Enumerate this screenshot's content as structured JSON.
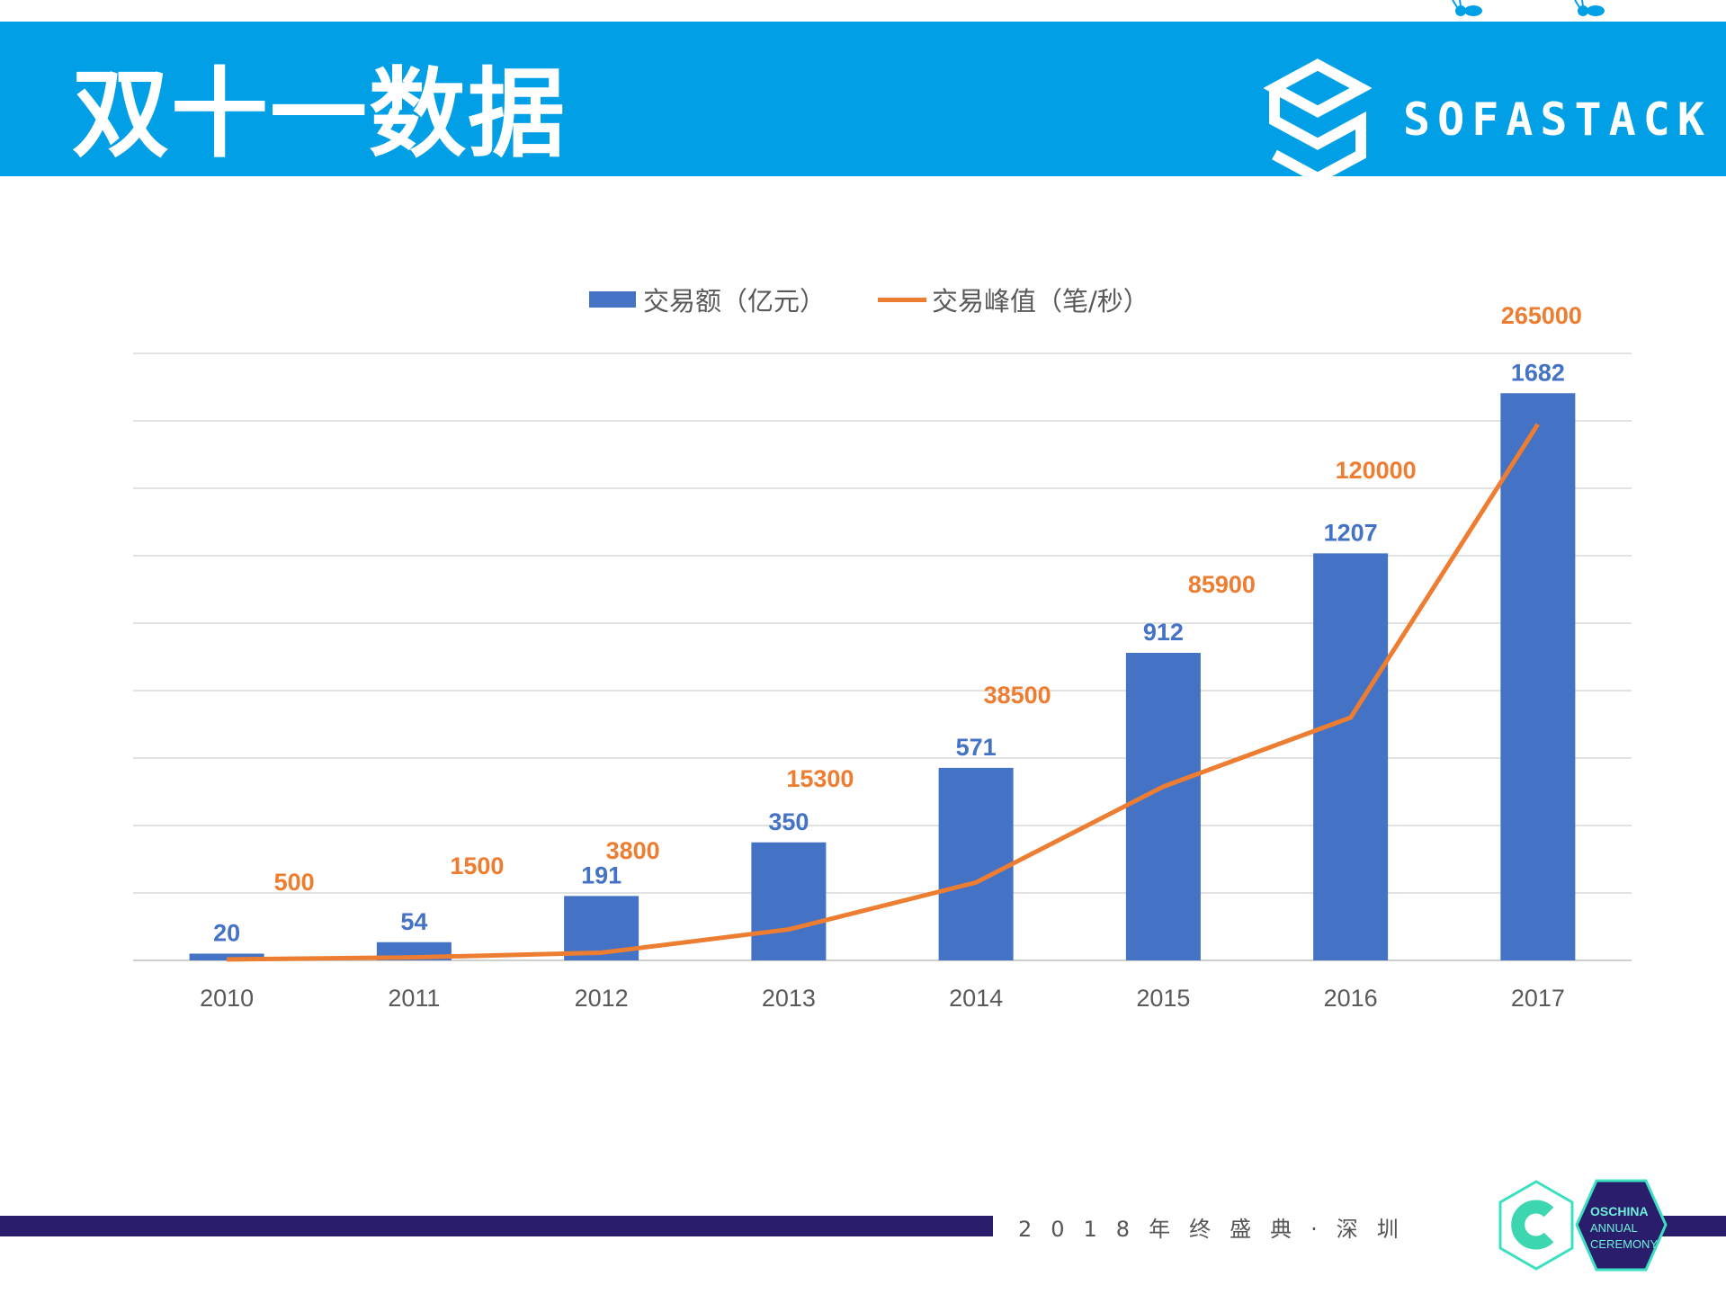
{
  "header": {
    "title": "双十一数据",
    "brand": "SOFASTACK"
  },
  "colors": {
    "header": "#009FE6",
    "bar": "#4472C4",
    "line": "#ED7D31",
    "footer_bar": "#2A1E6C",
    "accent_teal": "#3CE0C0"
  },
  "chart_data": {
    "type": "bar+line",
    "categories": [
      "2010",
      "2011",
      "2012",
      "2013",
      "2014",
      "2015",
      "2016",
      "2017"
    ],
    "series": [
      {
        "name": "交易额（亿元）",
        "type": "bar",
        "axis": "primary",
        "values": [
          20,
          54,
          191,
          350,
          571,
          912,
          1207,
          1682
        ]
      },
      {
        "name": "交易峰值（笔/秒）",
        "type": "line",
        "axis": "secondary",
        "values": [
          500,
          1500,
          3800,
          15300,
          38500,
          85900,
          120000,
          265000
        ]
      }
    ],
    "ylim_primary": [
      0,
      1800
    ],
    "ylim_secondary": [
      0,
      300000
    ],
    "grid": true,
    "y_axis_labels_visible": false,
    "legend_position": "top",
    "data_labels": true
  },
  "footer": {
    "event_text": "2018年终盛典·深圳",
    "logo_text": [
      "OSCHINA",
      "ANNUAL",
      "CEREMONY"
    ]
  }
}
